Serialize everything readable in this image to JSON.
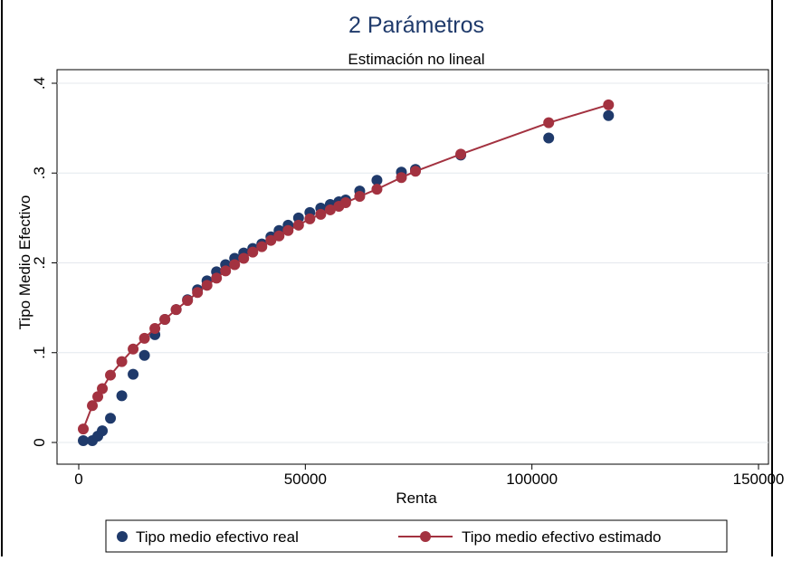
{
  "chart_data": {
    "type": "scatter",
    "title": "2 Parámetros",
    "subtitle": "Estimación no lineal",
    "xlabel": "Renta",
    "ylabel": "Tipo Medio Efectivo",
    "xlim": [
      0,
      150000
    ],
    "ylim": [
      0,
      0.4
    ],
    "x_ticks": [
      0,
      50000,
      100000,
      150000
    ],
    "x_tick_labels": [
      "0",
      "50000",
      "100000",
      "150000"
    ],
    "y_ticks": [
      0,
      0.1,
      0.2,
      0.3,
      0.4
    ],
    "y_tick_labels": [
      "0",
      ".1",
      ".2",
      ".3",
      ".4"
    ],
    "grid": "horizontal",
    "legend_position": "bottom",
    "series": [
      {
        "name": "Tipo medio efectivo real",
        "style": "markers",
        "color": "#1f3a6b",
        "points": [
          [
            1000,
            0.002
          ],
          [
            3000,
            0.002
          ],
          [
            4200,
            0.007
          ],
          [
            5200,
            0.013
          ],
          [
            7000,
            0.027
          ],
          [
            9500,
            0.052
          ],
          [
            12000,
            0.076
          ],
          [
            14500,
            0.097
          ],
          [
            16800,
            0.12
          ],
          [
            19000,
            0.137
          ],
          [
            21500,
            0.148
          ],
          [
            24000,
            0.159
          ],
          [
            26200,
            0.17
          ],
          [
            28300,
            0.18
          ],
          [
            30400,
            0.19
          ],
          [
            32400,
            0.198
          ],
          [
            34400,
            0.205
          ],
          [
            36400,
            0.211
          ],
          [
            38400,
            0.216
          ],
          [
            40400,
            0.221
          ],
          [
            42400,
            0.229
          ],
          [
            44200,
            0.236
          ],
          [
            46200,
            0.242
          ],
          [
            48500,
            0.25
          ],
          [
            51000,
            0.256
          ],
          [
            53400,
            0.261
          ],
          [
            55500,
            0.265
          ],
          [
            57400,
            0.268
          ],
          [
            58900,
            0.27
          ],
          [
            62000,
            0.28
          ],
          [
            65800,
            0.292
          ],
          [
            71200,
            0.301
          ],
          [
            74300,
            0.304
          ],
          [
            84300,
            0.32
          ],
          [
            103700,
            0.339
          ],
          [
            116900,
            0.364
          ]
        ]
      },
      {
        "name": "Tipo medio efectivo estimado",
        "style": "line+markers",
        "color": "#a33240",
        "points": [
          [
            1000,
            0.015
          ],
          [
            3000,
            0.041
          ],
          [
            4200,
            0.051
          ],
          [
            5200,
            0.06
          ],
          [
            7000,
            0.075
          ],
          [
            9500,
            0.09
          ],
          [
            12000,
            0.104
          ],
          [
            14500,
            0.116
          ],
          [
            16800,
            0.127
          ],
          [
            19000,
            0.137
          ],
          [
            21500,
            0.148
          ],
          [
            24000,
            0.158
          ],
          [
            26200,
            0.167
          ],
          [
            28300,
            0.175
          ],
          [
            30400,
            0.183
          ],
          [
            32400,
            0.191
          ],
          [
            34400,
            0.198
          ],
          [
            36400,
            0.205
          ],
          [
            38400,
            0.212
          ],
          [
            40400,
            0.218
          ],
          [
            42400,
            0.225
          ],
          [
            44200,
            0.23
          ],
          [
            46200,
            0.236
          ],
          [
            48500,
            0.242
          ],
          [
            51000,
            0.249
          ],
          [
            53400,
            0.254
          ],
          [
            55500,
            0.259
          ],
          [
            57400,
            0.263
          ],
          [
            58900,
            0.267
          ],
          [
            62000,
            0.274
          ],
          [
            65800,
            0.282
          ],
          [
            71200,
            0.295
          ],
          [
            74300,
            0.302
          ],
          [
            84300,
            0.321
          ],
          [
            103700,
            0.356
          ],
          [
            116900,
            0.376
          ]
        ]
      }
    ]
  }
}
